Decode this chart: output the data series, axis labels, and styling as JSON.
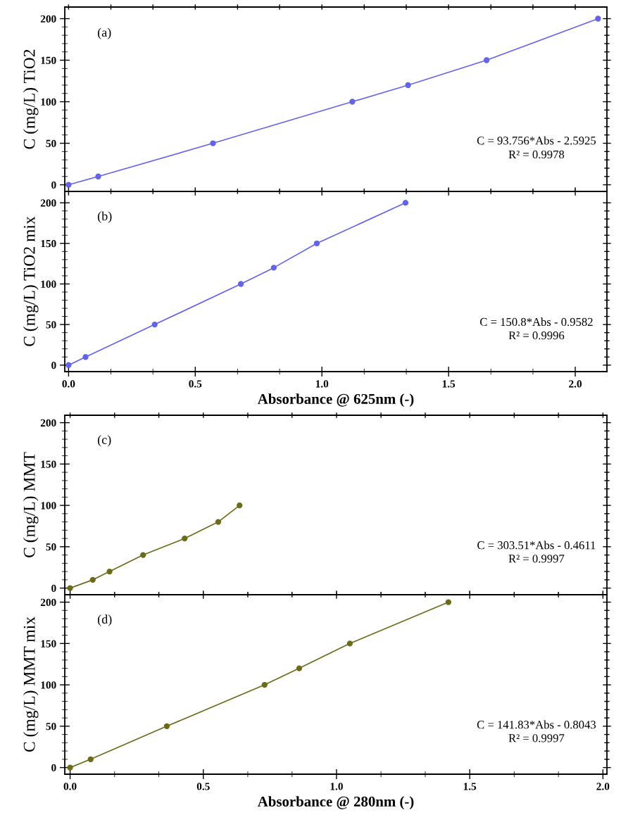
{
  "chart_data": [
    {
      "type": "line",
      "ylabel": "C (mg/L) TiO2",
      "x": [
        0,
        0.117,
        0.57,
        1.12,
        1.34,
        1.65,
        2.09
      ],
      "series": [
        {
          "color": "#6464e6",
          "values": [
            0,
            10,
            50,
            100,
            120,
            150,
            200
          ]
        }
      ],
      "xlim": [
        -0.015,
        2.125
      ],
      "xticks": [
        {
          "value": 0,
          "label": null
        },
        {
          "value": 0.167,
          "label": null
        },
        {
          "value": 0.333,
          "label": null
        },
        {
          "value": 0.5,
          "label": null
        },
        {
          "value": 0.667,
          "label": null
        },
        {
          "value": 0.833,
          "label": null
        },
        {
          "value": 1,
          "label": null
        },
        {
          "value": 1.167,
          "label": null
        },
        {
          "value": 1.333,
          "label": null
        },
        {
          "value": 1.5,
          "label": null
        },
        {
          "value": 1.667,
          "label": null
        },
        {
          "value": 1.833,
          "label": null
        },
        {
          "value": 2,
          "label": null
        }
      ],
      "ylim": [
        -8,
        214
      ],
      "yticks": [
        0,
        {
          "value": 10,
          "label": null
        },
        {
          "value": 20,
          "label": null
        },
        {
          "value": 30,
          "label": null
        },
        {
          "value": 40,
          "label": null
        },
        50,
        {
          "value": 60,
          "label": null
        },
        {
          "value": 70,
          "label": null
        },
        {
          "value": 80,
          "label": null
        },
        {
          "value": 90,
          "label": null
        },
        100,
        {
          "value": 110,
          "label": null
        },
        {
          "value": 120,
          "label": null
        },
        {
          "value": 130,
          "label": null
        },
        {
          "value": 140,
          "label": null
        },
        150,
        {
          "value": 160,
          "label": null
        },
        {
          "value": 170,
          "label": null
        },
        {
          "value": 180,
          "label": null
        },
        {
          "value": 190,
          "label": null
        },
        200
      ],
      "tick_labels": "y",
      "marker": "circle",
      "grid": false,
      "annotations": [
        "(a)",
        "C = 93.756*Abs - 2.5925",
        "R² = 0.9978"
      ]
    },
    {
      "type": "line",
      "ylabel": "C (mg/L) TiO2 mix",
      "xlabel": "Absorbance @ 625nm (-)",
      "x": [
        0,
        0.067,
        0.34,
        0.68,
        0.81,
        0.98,
        1.33
      ],
      "series": [
        {
          "color": "#6464e6",
          "values": [
            0,
            10,
            50,
            100,
            120,
            150,
            200
          ]
        }
      ],
      "xlim": [
        -0.015,
        2.125
      ],
      "xticks": [
        {
          "value": 0,
          "label": "0.0"
        },
        {
          "value": 0.167,
          "label": null
        },
        {
          "value": 0.333,
          "label": null
        },
        {
          "value": 0.5,
          "label": "0.5"
        },
        {
          "value": 0.667,
          "label": null
        },
        {
          "value": 0.833,
          "label": null
        },
        {
          "value": 1,
          "label": "1.0"
        },
        {
          "value": 1.167,
          "label": null
        },
        {
          "value": 1.333,
          "label": null
        },
        {
          "value": 1.5,
          "label": "1.5"
        },
        {
          "value": 1.667,
          "label": null
        },
        {
          "value": 1.833,
          "label": null
        },
        {
          "value": 2,
          "label": "2.0"
        }
      ],
      "ylim": [
        -8,
        214
      ],
      "yticks": [
        0,
        {
          "value": 10,
          "label": null
        },
        {
          "value": 20,
          "label": null
        },
        {
          "value": 30,
          "label": null
        },
        {
          "value": 40,
          "label": null
        },
        50,
        {
          "value": 60,
          "label": null
        },
        {
          "value": 70,
          "label": null
        },
        {
          "value": 80,
          "label": null
        },
        {
          "value": 90,
          "label": null
        },
        100,
        {
          "value": 110,
          "label": null
        },
        {
          "value": 120,
          "label": null
        },
        {
          "value": 130,
          "label": null
        },
        {
          "value": 140,
          "label": null
        },
        150,
        {
          "value": 160,
          "label": null
        },
        {
          "value": 170,
          "label": null
        },
        {
          "value": 180,
          "label": null
        },
        {
          "value": 190,
          "label": null
        },
        200
      ],
      "marker": "circle",
      "grid": false,
      "annotations": [
        "(b)",
        "C = 150.8*Abs - 0.9582",
        "R² = 0.9996"
      ]
    },
    {
      "type": "line",
      "ylabel": "C (mg/L) MMT",
      "x": [
        0,
        0.085,
        0.148,
        0.274,
        0.43,
        0.556,
        0.636
      ],
      "series": [
        {
          "color": "#6b6b1a",
          "values": [
            0,
            10,
            20,
            40,
            60,
            80,
            100
          ]
        }
      ],
      "xlim": [
        -0.02,
        2.015
      ],
      "xticks": [
        {
          "value": 0,
          "label": null
        },
        {
          "value": 0.167,
          "label": null
        },
        {
          "value": 0.333,
          "label": null
        },
        {
          "value": 0.5,
          "label": null
        },
        {
          "value": 0.667,
          "label": null
        },
        {
          "value": 0.833,
          "label": null
        },
        {
          "value": 1,
          "label": null
        },
        {
          "value": 1.167,
          "label": null
        },
        {
          "value": 1.333,
          "label": null
        },
        {
          "value": 1.5,
          "label": null
        },
        {
          "value": 1.667,
          "label": null
        },
        {
          "value": 1.833,
          "label": null
        },
        {
          "value": 2,
          "label": null
        }
      ],
      "ylim": [
        -8,
        209
      ],
      "yticks": [
        0,
        {
          "value": 10,
          "label": null
        },
        {
          "value": 20,
          "label": null
        },
        {
          "value": 30,
          "label": null
        },
        {
          "value": 40,
          "label": null
        },
        50,
        {
          "value": 60,
          "label": null
        },
        {
          "value": 70,
          "label": null
        },
        {
          "value": 80,
          "label": null
        },
        {
          "value": 90,
          "label": null
        },
        100,
        {
          "value": 110,
          "label": null
        },
        {
          "value": 120,
          "label": null
        },
        {
          "value": 130,
          "label": null
        },
        {
          "value": 140,
          "label": null
        },
        150,
        {
          "value": 160,
          "label": null
        },
        {
          "value": 170,
          "label": null
        },
        {
          "value": 180,
          "label": null
        },
        {
          "value": 190,
          "label": null
        },
        200
      ],
      "tick_labels": "y",
      "marker": "circle",
      "grid": false,
      "annotations": [
        "(c)",
        "C = 303.51*Abs - 0.4611",
        "R² = 0.9997"
      ]
    },
    {
      "type": "line",
      "ylabel": "C (mg/L) MMT mix",
      "xlabel": "Absorbance @ 280nm (-)",
      "x": [
        0,
        0.077,
        0.363,
        0.73,
        0.86,
        1.05,
        1.42
      ],
      "series": [
        {
          "color": "#6b6b1a",
          "values": [
            0,
            10,
            50,
            100,
            120,
            150,
            200
          ]
        }
      ],
      "xlim": [
        -0.02,
        2.015
      ],
      "xticks": [
        {
          "value": 0,
          "label": "0.0"
        },
        {
          "value": 0.167,
          "label": null
        },
        {
          "value": 0.333,
          "label": null
        },
        {
          "value": 0.5,
          "label": "0.5"
        },
        {
          "value": 0.667,
          "label": null
        },
        {
          "value": 0.833,
          "label": null
        },
        {
          "value": 1,
          "label": "1.0"
        },
        {
          "value": 1.167,
          "label": null
        },
        {
          "value": 1.333,
          "label": null
        },
        {
          "value": 1.5,
          "label": "1.5"
        },
        {
          "value": 1.667,
          "label": null
        },
        {
          "value": 1.833,
          "label": null
        },
        {
          "value": 2,
          "label": "2.0"
        }
      ],
      "ylim": [
        -8,
        209
      ],
      "yticks": [
        0,
        {
          "value": 10,
          "label": null
        },
        {
          "value": 20,
          "label": null
        },
        {
          "value": 30,
          "label": null
        },
        {
          "value": 40,
          "label": null
        },
        50,
        {
          "value": 60,
          "label": null
        },
        {
          "value": 70,
          "label": null
        },
        {
          "value": 80,
          "label": null
        },
        {
          "value": 90,
          "label": null
        },
        100,
        {
          "value": 110,
          "label": null
        },
        {
          "value": 120,
          "label": null
        },
        {
          "value": 130,
          "label": null
        },
        {
          "value": 140,
          "label": null
        },
        150,
        {
          "value": 160,
          "label": null
        },
        {
          "value": 170,
          "label": null
        },
        {
          "value": 180,
          "label": null
        },
        {
          "value": 190,
          "label": null
        },
        200
      ],
      "marker": "circle",
      "grid": false,
      "annotations": [
        "(d)",
        "C = 141.83*Abs - 0.8043",
        "R² = 0.9997"
      ]
    }
  ]
}
